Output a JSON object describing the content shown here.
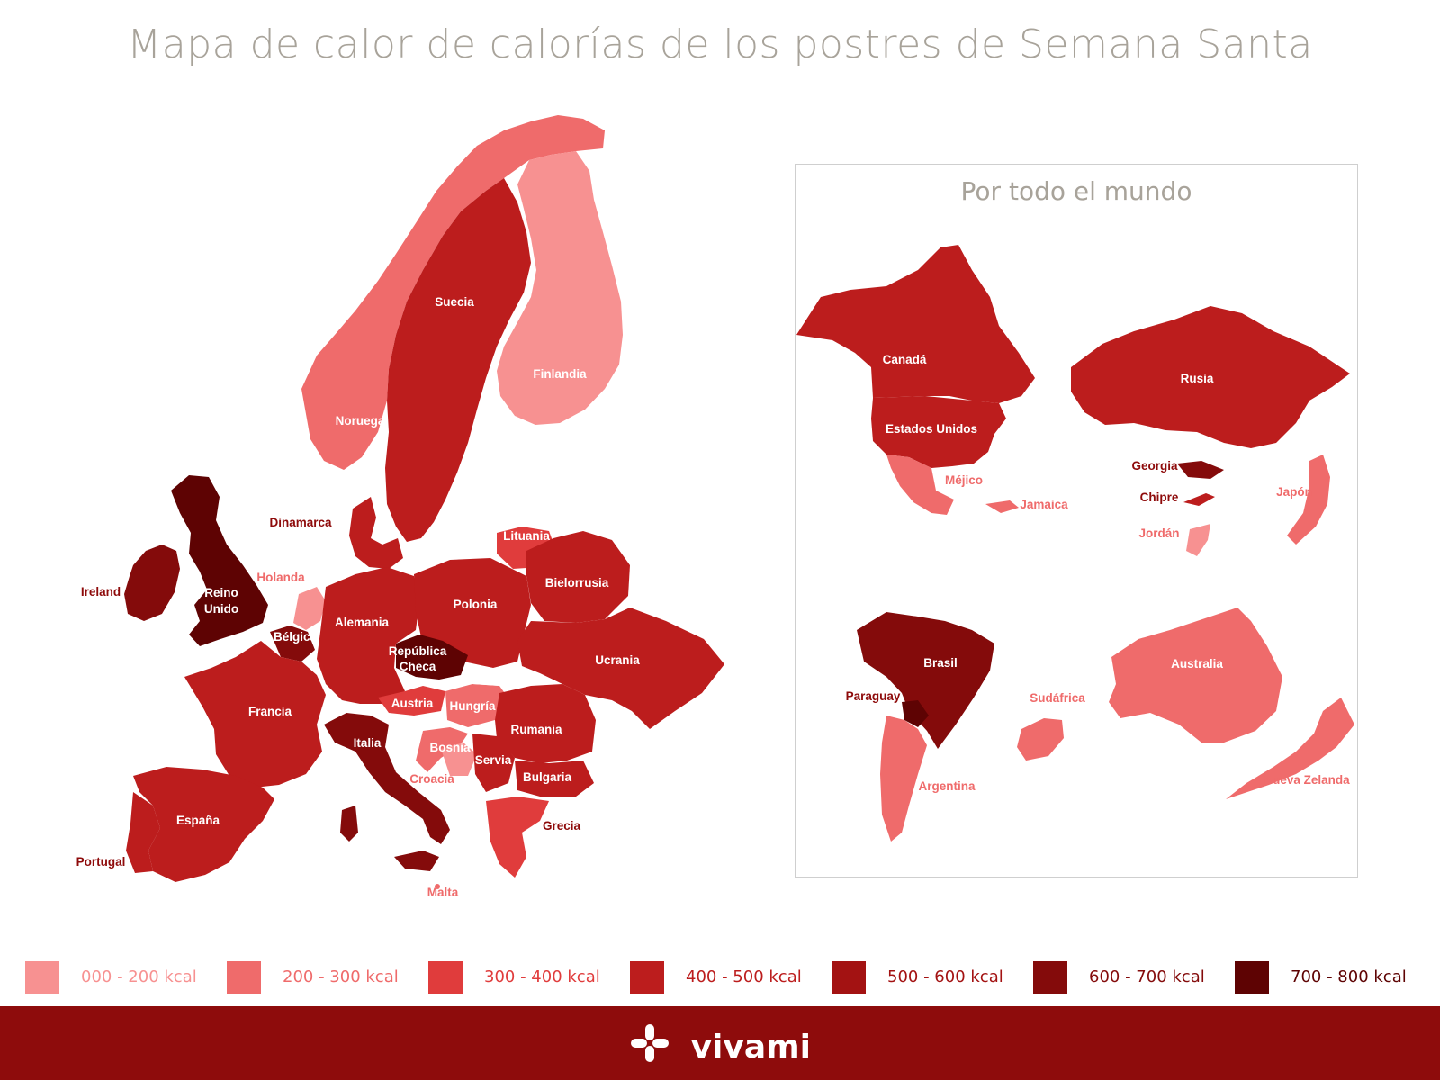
{
  "title": "Mapa de calor de calorías de los postres de Semana Santa",
  "colors": {
    "c0": "#f79191",
    "c1": "#ef6b6b",
    "c2": "#e03c3c",
    "c3": "#bc1d1d",
    "c4": "#a31212",
    "c5": "#840b0b",
    "c6": "#5e0303",
    "footer": "#8e0c0c",
    "title": "#a8a39a"
  },
  "europe": {
    "labels": {
      "suecia": "Suecia",
      "finlandia": "Finlandia",
      "noruega": "Noruega",
      "dinamarca": "Dinamarca",
      "lituania": "Lituania",
      "bielorrusia": "Bielorrusia",
      "ireland": "Ireland",
      "reino_unido_1": "Reino",
      "reino_unido_2": "Unido",
      "holanda": "Holanda",
      "belgica": "Bélgica",
      "alemania": "Alemania",
      "polonia": "Polonia",
      "ucrania": "Ucrania",
      "republica_checa_1": "República",
      "republica_checa_2": "Checa",
      "francia": "Francia",
      "austria": "Austria",
      "hungria": "Hungría",
      "rumania": "Rumania",
      "italia": "Italia",
      "bosnia": "Bosnia",
      "servia": "Servia",
      "croacia": "Croacia",
      "bulgaria": "Bulgaria",
      "espana": "España",
      "grecia": "Grecia",
      "portugal": "Portugal",
      "malta": "Malta"
    }
  },
  "world": {
    "title": "Por todo el mundo",
    "labels": {
      "canada": "Canadá",
      "estados_unidos": "Estados Unidos",
      "mejico": "Méjico",
      "jamaica": "Jamaica",
      "rusia": "Rusia",
      "georgia": "Georgia",
      "chipre": "Chipre",
      "japon": "Japón",
      "jordan": "Jordán",
      "brasil": "Brasil",
      "paraguay": "Paraguay",
      "argentina": "Argentina",
      "sudafrica": "Sudáfrica",
      "australia": "Australia",
      "nueva_zelanda": "Nueva Zelanda"
    }
  },
  "legend": [
    {
      "label": "000 - 200 kcal",
      "color": "#f79191"
    },
    {
      "label": "200 - 300 kcal",
      "color": "#ef6b6b"
    },
    {
      "label": "300 - 400 kcal",
      "color": "#e03c3c"
    },
    {
      "label": "400 - 500 kcal",
      "color": "#bc1d1d"
    },
    {
      "label": "500 - 600 kcal",
      "color": "#a31212"
    },
    {
      "label": "600 - 700 kcal",
      "color": "#840b0b"
    },
    {
      "label": "700 - 800 kcal",
      "color": "#5e0303"
    }
  ],
  "footer": {
    "brand": "vivami",
    "logo_icon": "vivami-cross-logo-icon"
  }
}
